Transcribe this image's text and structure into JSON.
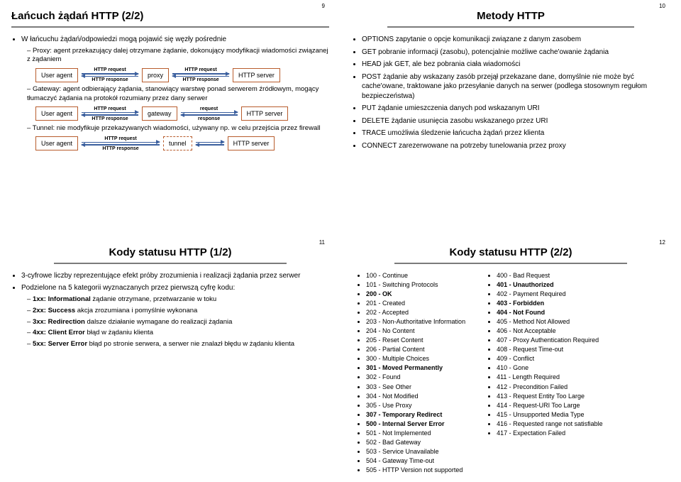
{
  "slide9": {
    "num": "9",
    "title": "Łańcuch żądań HTTP (2/2)",
    "b1": "W łańcuchu żądań/odpowiedzi mogą pojawić się węzły pośrednie",
    "s1": "Proxy: agent przekazujący dalej otrzymane żądanie, dokonujący modyfikacji wiadomości związanej z żądaniem",
    "s2": "Gateway: agent odbierający żądania, stanowiący warstwę ponad serwerem źródłowym, mogący tłumaczyć żądania na protokół rozumiany przez dany serwer",
    "s3": "Tunnel: nie modyfikuje przekazywanych wiadomości, używany np. w celu przejścia przez firewall",
    "diag": {
      "ua": "User agent",
      "proxy": "proxy",
      "gateway": "gateway",
      "tunnel": "tunnel",
      "server": "HTTP server",
      "req": "HTTP request",
      "res": "HTTP response",
      "req2": "request",
      "res2": "response"
    }
  },
  "slide10": {
    "num": "10",
    "title": "Metody HTTP",
    "items": [
      {
        "t": "OPTIONS zapytanie o opcje komunikacji związane z danym zasobem"
      },
      {
        "t": "GET pobranie informacji (zasobu), potencjalnie możliwe cache'owanie żądania"
      },
      {
        "t": "HEAD jak GET, ale bez pobrania ciała wiadomości"
      },
      {
        "t": "POST żądanie aby wskazany zasób przejął przekazane dane, domyślnie nie może być cache'owane, traktowane jako przesyłanie danych na serwer (podlega stosownym regułom bezpieczeństwa)"
      },
      {
        "t": "PUT żądanie umieszczenia danych pod wskazanym URI"
      },
      {
        "t": "DELETE żądanie usunięcia zasobu wskazanego przez URI"
      },
      {
        "t": "TRACE umożliwia śledzenie łańcucha żądań przez klienta"
      },
      {
        "t": "CONNECT zarezerwowane na potrzeby tunelowania przez proxy"
      }
    ]
  },
  "slide11": {
    "num": "11",
    "title": "Kody statusu HTTP (1/2)",
    "b1": "3-cyfrowe liczby reprezentujące efekt próby zrozumienia i realizacji żądania przez serwer",
    "b2": "Podzielone na 5 kategorii wyznaczanych przez pierwszą cyfrę kodu:",
    "cats": [
      {
        "h": "1xx: Informational",
        "t": " żądanie otrzymane, przetwarzanie w toku"
      },
      {
        "h": "2xx: Success",
        "t": " akcja zrozumiana i pomyślnie wykonana"
      },
      {
        "h": "3xx: Redirection",
        "t": " dalsze działanie wymagane do realizacji żądania"
      },
      {
        "h": "4xx: Client Error",
        "t": " błąd w żądaniu klienta"
      },
      {
        "h": "5xx: Server Error",
        "t": " błąd po stronie serwera, a serwer nie znalazł błędu w żądaniu klienta"
      }
    ]
  },
  "slide12": {
    "num": "12",
    "title": "Kody statusu HTTP (2/2)",
    "left": [
      {
        "t": "100 - Continue"
      },
      {
        "t": "101 - Switching Protocols"
      },
      {
        "t": "200 - OK",
        "b": true
      },
      {
        "t": "201 - Created"
      },
      {
        "t": "202 - Accepted"
      },
      {
        "t": "203 - Non-Authoritative Information"
      },
      {
        "t": "204 - No Content"
      },
      {
        "t": "205 - Reset Content"
      },
      {
        "t": "206 - Partial Content"
      },
      {
        "t": "300 - Multiple Choices"
      },
      {
        "t": "301 - Moved Permanently",
        "b": true
      },
      {
        "t": "302 - Found"
      },
      {
        "t": "303 - See Other"
      },
      {
        "t": "304 - Not Modified"
      },
      {
        "t": "305 - Use Proxy"
      },
      {
        "t": "307 - Temporary Redirect",
        "b": true
      },
      {
        "t": "500 -  Internal Server Error",
        "b": true
      },
      {
        "t": "501 -  Not Implemented"
      },
      {
        "t": "502 -  Bad Gateway"
      },
      {
        "t": "503 -  Service Unavailable"
      },
      {
        "t": "504 -  Gateway Time-out"
      },
      {
        "t": "505 -  HTTP Version not supported"
      }
    ],
    "right": [
      {
        "t": "400 - Bad Request"
      },
      {
        "t": "401 - Unauthorized",
        "b": true
      },
      {
        "t": "402 - Payment Required"
      },
      {
        "t": "403 - Forbidden",
        "b": true
      },
      {
        "t": "404 - Not Found",
        "b": true
      },
      {
        "t": "405 - Method Not Allowed"
      },
      {
        "t": "406 - Not Acceptable"
      },
      {
        "t": "407 -  Proxy Authentication Required"
      },
      {
        "t": "408 -  Request Time-out"
      },
      {
        "t": "409 -  Conflict"
      },
      {
        "t": "410 -  Gone"
      },
      {
        "t": "411 -  Length Required"
      },
      {
        "t": "412 -  Precondition Failed"
      },
      {
        "t": "413 -  Request Entity Too Large"
      },
      {
        "t": "414 -  Request-URI Too Large"
      },
      {
        "t": "415 -  Unsupported Media Type"
      },
      {
        "t": "416 -  Requested range not satisfiable"
      },
      {
        "t": "417 -  Expectation Failed"
      }
    ]
  }
}
